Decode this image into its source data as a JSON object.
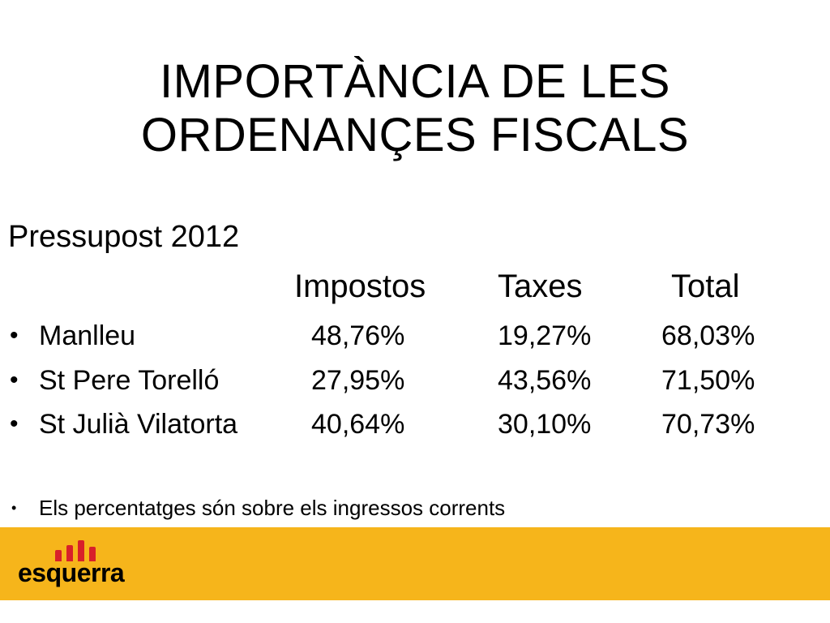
{
  "title": {
    "line1": "IMPORTÀNCIA DE LES",
    "line2": "ORDENANÇES FISCALS"
  },
  "subtitle": "Pressupost 2012",
  "columns": [
    "Impostos",
    "Taxes",
    "Total"
  ],
  "rows": [
    {
      "label": "Manlleu",
      "impostos": "48,76%",
      "taxes": "19,27%",
      "total": "68,03%"
    },
    {
      "label": "St Pere Torelló",
      "impostos": "27,95%",
      "taxes": "43,56%",
      "total": "71,50%"
    },
    {
      "label": "St Julià Vilatorta",
      "impostos": "40,64%",
      "taxes": "30,10%",
      "total": "70,73%"
    }
  ],
  "bullet_char": "•",
  "note": "Els percentatges són sobre els ingressos corrents",
  "footer": {
    "logo_text": "esquerra",
    "logo_icon": "esquerra-flag-bars-icon",
    "background_color": "#f6b51b",
    "accent_color": "#d8202a"
  }
}
